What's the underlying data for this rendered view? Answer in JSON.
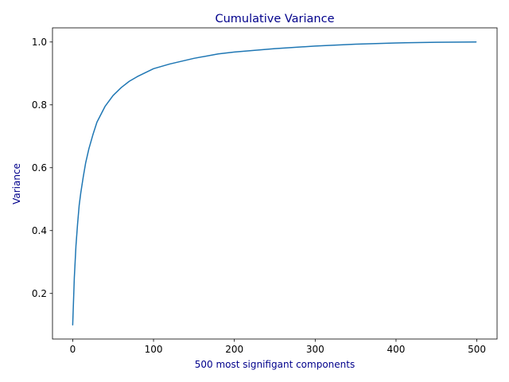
{
  "chart_data": {
    "type": "line",
    "title": "Cumulative Variance",
    "xlabel": "500 most signifigant components",
    "ylabel": "Variance",
    "label_color": "#00008b",
    "line_color": "#1f77b4",
    "grid": false,
    "legend": "none",
    "xlim": [
      -25,
      525
    ],
    "ylim": [
      0.055,
      1.045
    ],
    "x_ticks": [
      0,
      100,
      200,
      300,
      400,
      500
    ],
    "x_tick_labels": [
      "0",
      "100",
      "200",
      "300",
      "400",
      "500"
    ],
    "y_ticks": [
      0.2,
      0.4,
      0.6,
      0.8,
      1.0
    ],
    "y_tick_labels": [
      "0.2",
      "0.4",
      "0.6",
      "0.8",
      "1.0"
    ],
    "series": [
      {
        "x": [
          0,
          2,
          4,
          6,
          8,
          10,
          13,
          16,
          20,
          25,
          30,
          35,
          40,
          50,
          60,
          70,
          80,
          100,
          120,
          150,
          180,
          200,
          250,
          300,
          350,
          400,
          450,
          499
        ],
        "values": [
          0.1,
          0.25,
          0.35,
          0.42,
          0.48,
          0.52,
          0.57,
          0.615,
          0.66,
          0.705,
          0.745,
          0.77,
          0.795,
          0.83,
          0.855,
          0.875,
          0.89,
          0.915,
          0.93,
          0.948,
          0.962,
          0.968,
          0.979,
          0.987,
          0.993,
          0.997,
          0.999,
          1.0
        ]
      }
    ]
  }
}
